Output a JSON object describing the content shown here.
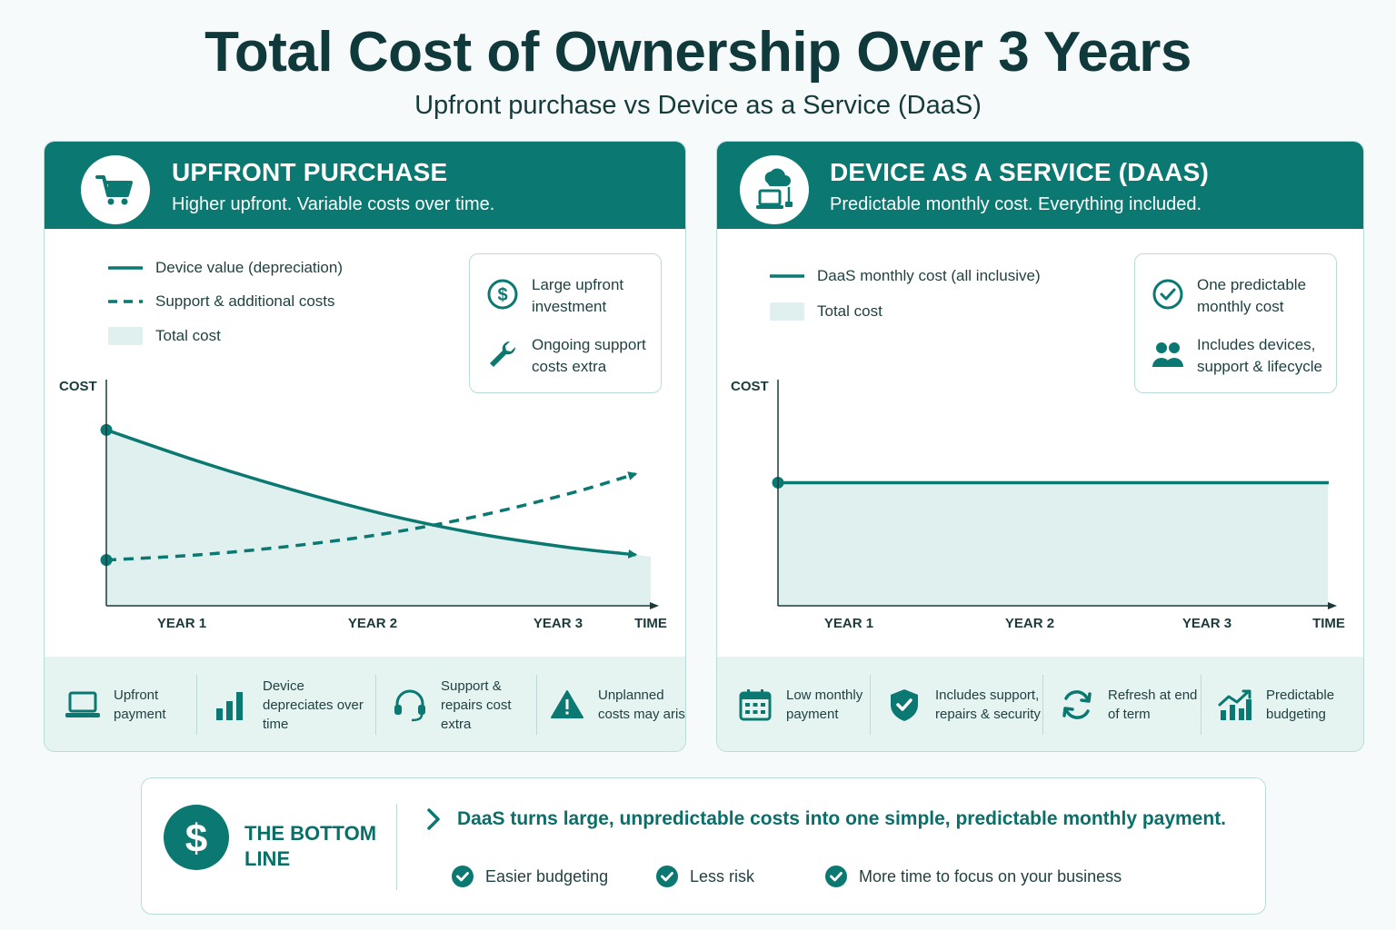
{
  "header": {
    "title": "Total Cost of Ownership Over 3 Years",
    "subtitle": "Upfront purchase vs Device as a Service (DaaS)"
  },
  "colors": {
    "primary": "#0b7872",
    "fill": "#dff0ee",
    "background": "#f7fafa",
    "text": "#173b3c"
  },
  "left_panel": {
    "icon": "shopping-cart-icon",
    "title": "UPFRONT PURCHASE",
    "subtitle": "Higher upfront. Variable costs over time.",
    "legend": [
      "Device value (depreciation)",
      "Support & additional costs",
      "Total cost"
    ],
    "info": [
      {
        "icon": "dollar-icon",
        "text": "Large upfront investment"
      },
      {
        "icon": "wrench-icon",
        "text": "Ongoing support costs extra"
      }
    ],
    "features": [
      {
        "icon": "laptop-icon",
        "text": "Upfront payment"
      },
      {
        "icon": "bar-chart-icon",
        "text": "Device depreciates over time"
      },
      {
        "icon": "headset-icon",
        "text": "Support & repairs cost extra"
      },
      {
        "icon": "warning-icon",
        "text": "Unplanned costs may arise"
      }
    ]
  },
  "right_panel": {
    "icon": "cloud-laptop-icon",
    "title": "DEVICE AS A SERVICE (DAAS)",
    "subtitle": "Predictable monthly cost. Everything included.",
    "legend": [
      "DaaS monthly cost (all inclusive)",
      "Total cost"
    ],
    "info": [
      {
        "icon": "check-circle-icon",
        "text": "One predictable monthly cost"
      },
      {
        "icon": "people-icon",
        "text": "Includes devices, support & lifecycle"
      }
    ],
    "features": [
      {
        "icon": "calendar-icon",
        "text": "Low monthly payment"
      },
      {
        "icon": "shield-check-icon",
        "text": "Includes support, repairs & security"
      },
      {
        "icon": "refresh-icon",
        "text": "Refresh at end of term"
      },
      {
        "icon": "trend-chart-icon",
        "text": "Predictable budgeting"
      }
    ]
  },
  "chart_data": [
    {
      "type": "line",
      "ylabel": "COST",
      "xlabel": "TIME",
      "categories": [
        "YEAR 1",
        "YEAR 2",
        "YEAR 3"
      ],
      "x": [
        0,
        0.5,
        1.0,
        1.5,
        2.0,
        2.5,
        2.85
      ],
      "series": [
        {
          "name": "Device value (depreciation)",
          "style": "solid",
          "values": [
            100,
            82,
            66,
            52,
            41,
            33,
            29
          ]
        },
        {
          "name": "Support & additional costs",
          "style": "dashed",
          "values": [
            26,
            29,
            34,
            41,
            51,
            64,
            75
          ]
        }
      ],
      "area": "Total cost",
      "ylim": [
        0,
        110
      ],
      "grid": false,
      "legend": "top-left"
    },
    {
      "type": "area",
      "ylabel": "COST",
      "xlabel": "TIME",
      "categories": [
        "YEAR 1",
        "YEAR 2",
        "YEAR 3"
      ],
      "x": [
        0,
        2.85
      ],
      "series": [
        {
          "name": "DaaS monthly cost (all inclusive)",
          "style": "solid",
          "values": [
            70,
            70
          ]
        }
      ],
      "area": "Total cost",
      "ylim": [
        0,
        110
      ],
      "grid": false,
      "legend": "top-left"
    }
  ],
  "bottom": {
    "icon": "dollar-icon",
    "title": "THE BOTTOM LINE",
    "message": "DaaS turns large, unpredictable costs into one simple, predictable monthly payment.",
    "checks": [
      "Easier budgeting",
      "Less risk",
      "More time to focus on your business"
    ]
  }
}
